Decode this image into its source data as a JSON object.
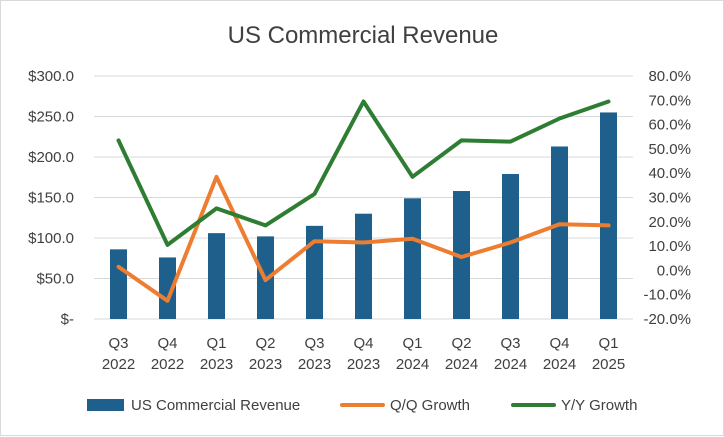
{
  "chart_data": {
    "type": "bar",
    "title": "US Commercial Revenue",
    "categories": [
      [
        "Q3",
        "2022"
      ],
      [
        "Q4",
        "2022"
      ],
      [
        "Q1",
        "2023"
      ],
      [
        "Q2",
        "2023"
      ],
      [
        "Q3",
        "2023"
      ],
      [
        "Q4",
        "2023"
      ],
      [
        "Q1",
        "2024"
      ],
      [
        "Q2",
        "2024"
      ],
      [
        "Q3",
        "2024"
      ],
      [
        "Q4",
        "2024"
      ],
      [
        "Q1",
        "2025"
      ]
    ],
    "y_left": {
      "ylim": [
        0,
        300
      ],
      "ticks": [
        0,
        50,
        100,
        150,
        200,
        250,
        300
      ],
      "tick_labels": [
        "$-",
        "$50.0",
        "$100.0",
        "$150.0",
        "$200.0",
        "$250.0",
        "$300.0"
      ]
    },
    "y_right": {
      "ylim": [
        -20,
        80
      ],
      "ticks": [
        -20,
        -10,
        0,
        10,
        20,
        30,
        40,
        50,
        60,
        70,
        80
      ],
      "tick_labels": [
        "-20.0%",
        "-10.0%",
        "0.0%",
        "10.0%",
        "20.0%",
        "30.0%",
        "40.0%",
        "50.0%",
        "60.0%",
        "70.0%",
        "80.0%"
      ]
    },
    "series": [
      {
        "name": "US Commercial Revenue",
        "kind": "bar",
        "axis": "left",
        "color": "#1f5f8b",
        "values": [
          86,
          76,
          106,
          102,
          115,
          130,
          149,
          158,
          179,
          213,
          255
        ]
      },
      {
        "name": "Q/Q Growth",
        "kind": "line",
        "axis": "right",
        "color": "#ed7d31",
        "values": [
          1.5,
          -12.5,
          38.5,
          -4.0,
          12.0,
          11.5,
          13.0,
          5.5,
          11.5,
          19.0,
          18.5
        ]
      },
      {
        "name": "Y/Y Growth",
        "kind": "line",
        "axis": "right",
        "color": "#2e7d32",
        "values": [
          53.5,
          10.5,
          25.5,
          18.5,
          31.5,
          69.5,
          38.5,
          53.5,
          53.0,
          62.5,
          69.5
        ]
      }
    ],
    "grid": true,
    "legend": "bottom"
  }
}
